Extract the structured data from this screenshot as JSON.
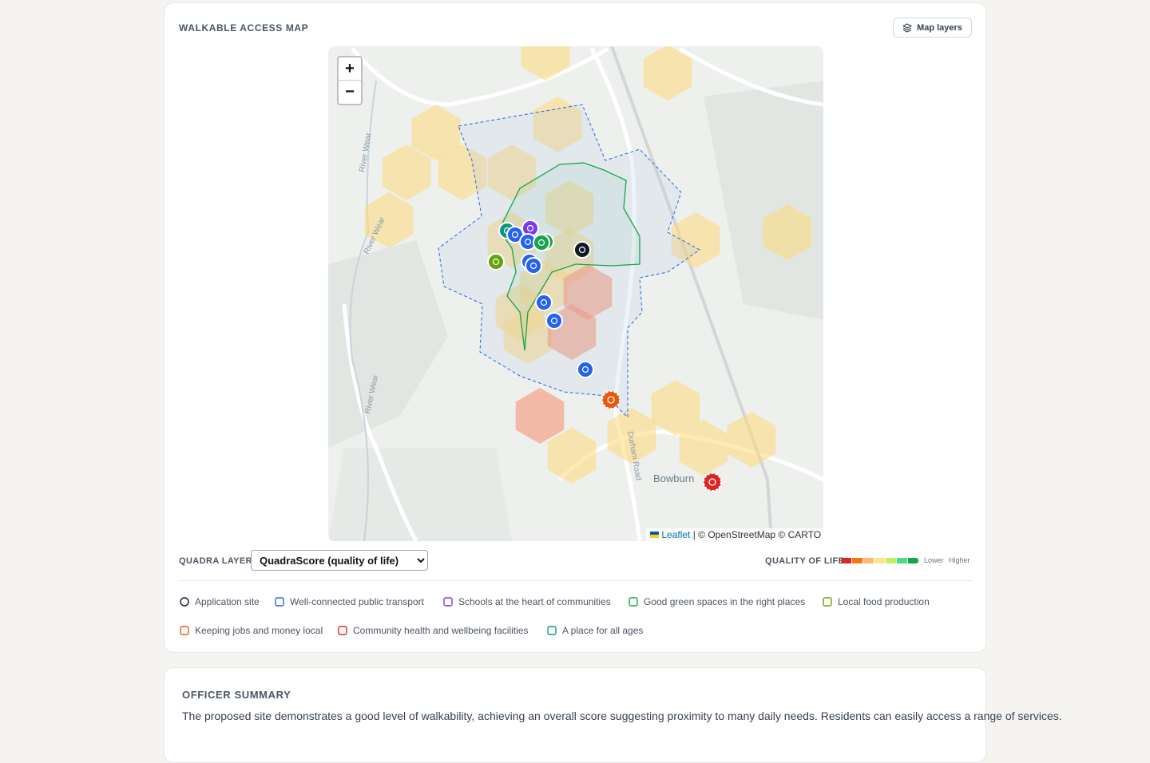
{
  "header": {
    "title": "WALKABLE ACCESS MAP",
    "button": "Map layers"
  },
  "map": {
    "zoom_in": "+",
    "zoom_out": "−",
    "labels": [
      "River Wear",
      "River Wear",
      "River Wear",
      "Durham Road",
      "Bowburn"
    ],
    "attribution": {
      "link": "Leaflet",
      "text": "| © OpenStreetMap © CARTO"
    }
  },
  "controls": {
    "layer_label": "QUADRA LAYER",
    "layer_option": "QuadraScore (quality of life)",
    "scale_label": "QUALITY OF LIFE",
    "scale_low": "Lower",
    "scale_high": "Higher"
  },
  "legend": [
    "Application site",
    "Well-connected public transport",
    "Schools at the heart of communities",
    "Good green spaces in the right places",
    "Local food production",
    "Keeping jobs and money local",
    "Community health and wellbeing facilities",
    "A place for all ages"
  ],
  "summary": {
    "title": "OFFICER SUMMARY",
    "text": "The proposed site demonstrates a good level of walkability, achieving an overall score suggesting proximity to many daily needs. Residents can easily access a range of services."
  }
}
